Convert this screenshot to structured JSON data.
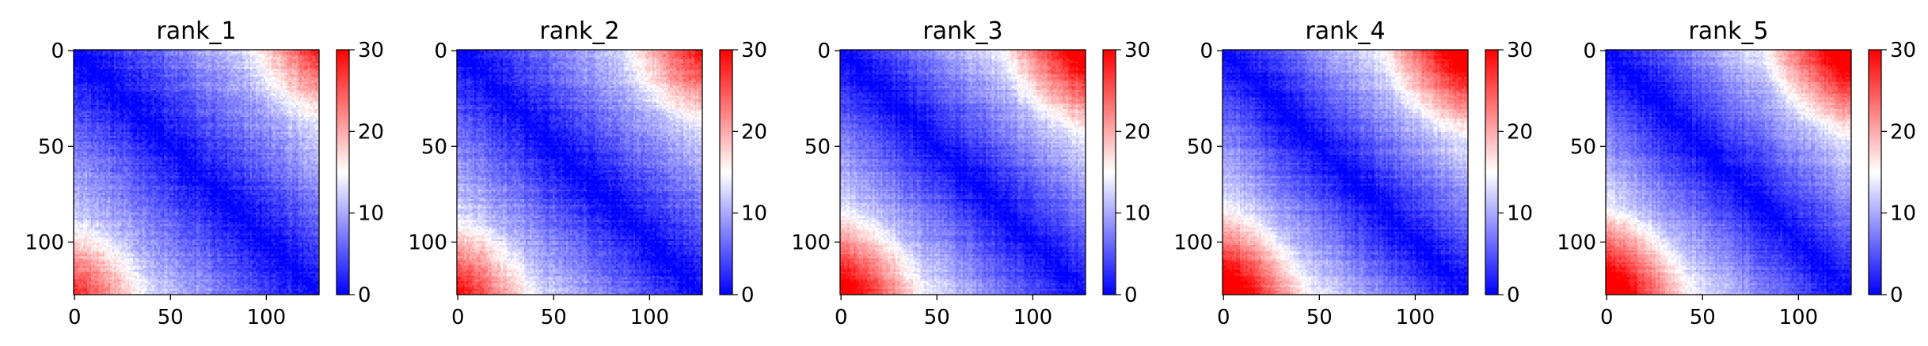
{
  "chart_data": [
    {
      "type": "heatmap",
      "title": "rank_1",
      "matrix_size": 128,
      "xticks": [
        0,
        50,
        100
      ],
      "yticks": [
        0,
        50,
        100
      ],
      "colorbar": {
        "min": 0,
        "max": 30,
        "ticks": [
          0,
          10,
          20,
          30
        ]
      },
      "colors": {
        "low": "#0000ff",
        "mid": "#ffffff",
        "high": "#ff0000"
      },
      "pattern": {
        "growth": 1.0,
        "corner_boost": 10,
        "corner_reach": 40,
        "noise": 3
      }
    },
    {
      "type": "heatmap",
      "title": "rank_2",
      "matrix_size": 128,
      "xticks": [
        0,
        50,
        100
      ],
      "yticks": [
        0,
        50,
        100
      ],
      "colorbar": {
        "min": 0,
        "max": 30,
        "ticks": [
          0,
          10,
          20,
          30
        ]
      },
      "colors": {
        "low": "#0000ff",
        "mid": "#ffffff",
        "high": "#ff0000"
      },
      "pattern": {
        "growth": 1.05,
        "corner_boost": 11,
        "corner_reach": 42,
        "noise": 3
      }
    },
    {
      "type": "heatmap",
      "title": "rank_3",
      "matrix_size": 128,
      "xticks": [
        0,
        50,
        100
      ],
      "yticks": [
        0,
        50,
        100
      ],
      "colorbar": {
        "min": 0,
        "max": 30,
        "ticks": [
          0,
          10,
          20,
          30
        ]
      },
      "colors": {
        "low": "#0000ff",
        "mid": "#ffffff",
        "high": "#ff0000"
      },
      "pattern": {
        "growth": 1.15,
        "corner_boost": 13,
        "corner_reach": 45,
        "noise": 2.5
      }
    },
    {
      "type": "heatmap",
      "title": "rank_4",
      "matrix_size": 128,
      "xticks": [
        0,
        50,
        100
      ],
      "yticks": [
        0,
        50,
        100
      ],
      "colorbar": {
        "min": 0,
        "max": 30,
        "ticks": [
          0,
          10,
          20,
          30
        ]
      },
      "colors": {
        "low": "#0000ff",
        "mid": "#ffffff",
        "high": "#ff0000"
      },
      "pattern": {
        "growth": 1.2,
        "corner_boost": 14,
        "corner_reach": 46,
        "noise": 2.5
      }
    },
    {
      "type": "heatmap",
      "title": "rank_5",
      "matrix_size": 128,
      "xticks": [
        0,
        50,
        100
      ],
      "yticks": [
        0,
        50,
        100
      ],
      "colorbar": {
        "min": 0,
        "max": 30,
        "ticks": [
          0,
          10,
          20,
          30
        ]
      },
      "colors": {
        "low": "#0000ff",
        "mid": "#ffffff",
        "high": "#ff0000"
      },
      "pattern": {
        "growth": 1.2,
        "corner_boost": 14,
        "corner_reach": 46,
        "noise": 2.5
      }
    }
  ]
}
